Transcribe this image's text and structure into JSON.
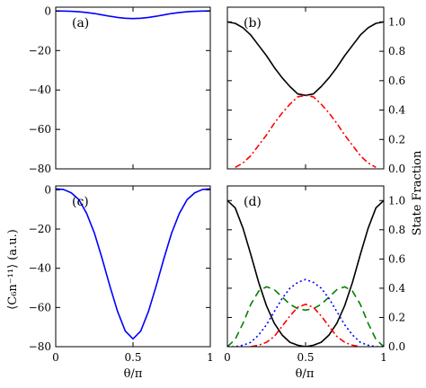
{
  "chart_data": [
    {
      "panel": "(a)",
      "type": "line",
      "xlim": [
        0,
        1
      ],
      "ylim": [
        -80,
        2
      ],
      "xticks": [],
      "yticks": [
        0,
        -20,
        -40,
        -60,
        -80
      ],
      "yticklabels": [
        "0",
        "−20",
        "−40",
        "−60",
        "−80"
      ],
      "series": [
        {
          "color": "#0000ff",
          "style": "solid",
          "x": [
            0,
            0.05,
            0.1,
            0.15,
            0.2,
            0.25,
            0.3,
            0.35,
            0.4,
            0.45,
            0.5,
            0.55,
            0.6,
            0.65,
            0.7,
            0.75,
            0.8,
            0.85,
            0.9,
            0.95,
            1
          ],
          "y": [
            0.1,
            0.05,
            -0.1,
            -0.3,
            -0.7,
            -1.2,
            -1.9,
            -2.6,
            -3.2,
            -3.6,
            -3.8,
            -3.6,
            -3.2,
            -2.6,
            -1.9,
            -1.2,
            -0.7,
            -0.3,
            -0.1,
            0.05,
            0.1
          ]
        }
      ]
    },
    {
      "panel": "(b)",
      "type": "line",
      "xlim": [
        0,
        1
      ],
      "ylim": [
        0,
        1.1
      ],
      "xticks": [],
      "yticks_right": [
        1.0,
        0.8,
        0.6,
        0.4,
        0.2,
        0.0
      ],
      "yticklabels_right": [
        "1.0",
        "0.8",
        "0.6",
        "0.4",
        "0.2",
        "0.0"
      ],
      "series": [
        {
          "color": "#000000",
          "style": "solid",
          "x": [
            0,
            0.05,
            0.1,
            0.15,
            0.2,
            0.25,
            0.3,
            0.35,
            0.4,
            0.45,
            0.5,
            0.55,
            0.6,
            0.65,
            0.7,
            0.75,
            0.8,
            0.85,
            0.9,
            0.95,
            1
          ],
          "y": [
            1.0,
            0.99,
            0.96,
            0.91,
            0.84,
            0.77,
            0.69,
            0.62,
            0.56,
            0.51,
            0.5,
            0.51,
            0.56,
            0.62,
            0.69,
            0.77,
            0.84,
            0.91,
            0.96,
            0.99,
            1.0
          ]
        },
        {
          "color": "#ff0000",
          "style": "dashdot",
          "x": [
            0.05,
            0.1,
            0.15,
            0.2,
            0.25,
            0.3,
            0.35,
            0.4,
            0.45,
            0.5,
            0.55,
            0.6,
            0.65,
            0.7,
            0.75,
            0.8,
            0.85,
            0.9,
            0.95
          ],
          "y": [
            0.01,
            0.04,
            0.09,
            0.16,
            0.23,
            0.31,
            0.38,
            0.44,
            0.49,
            0.5,
            0.49,
            0.44,
            0.38,
            0.31,
            0.23,
            0.16,
            0.09,
            0.04,
            0.01
          ]
        }
      ]
    },
    {
      "panel": "(c)",
      "type": "line",
      "xlim": [
        0,
        1
      ],
      "ylim": [
        -80,
        2
      ],
      "xticks": [
        0,
        0.5,
        1
      ],
      "xticklabels": [
        "0",
        "0.5",
        "1"
      ],
      "yticks": [
        0,
        -20,
        -40,
        -60,
        -80
      ],
      "yticklabels": [
        "0",
        "−20",
        "−40",
        "−60",
        "−80"
      ],
      "series": [
        {
          "color": "#0000ff",
          "style": "solid",
          "x": [
            0,
            0.05,
            0.1,
            0.15,
            0.2,
            0.25,
            0.3,
            0.35,
            0.4,
            0.45,
            0.5,
            0.55,
            0.6,
            0.65,
            0.7,
            0.75,
            0.8,
            0.85,
            0.9,
            0.95,
            1
          ],
          "y": [
            0.5,
            0.2,
            -1.5,
            -5,
            -12,
            -22,
            -35,
            -49,
            -62,
            -72,
            -76,
            -72,
            -62,
            -49,
            -35,
            -22,
            -12,
            -5,
            -1.5,
            0.2,
            0.5
          ]
        }
      ]
    },
    {
      "panel": "(d)",
      "type": "line",
      "xlim": [
        0,
        1
      ],
      "ylim": [
        0,
        1.1
      ],
      "xticks": [
        0,
        0.5,
        1
      ],
      "xticklabels": [
        "0",
        "0.5",
        "1"
      ],
      "yticks_right": [
        1.0,
        0.8,
        0.6,
        0.4,
        0.2,
        0.0
      ],
      "yticklabels_right": [
        "1.0",
        "0.8",
        "0.6",
        "0.4",
        "0.2",
        "0.0"
      ],
      "series": [
        {
          "color": "#000000",
          "style": "solid",
          "x": [
            0,
            0.05,
            0.1,
            0.15,
            0.2,
            0.25,
            0.3,
            0.35,
            0.4,
            0.45,
            0.5,
            0.55,
            0.6,
            0.65,
            0.7,
            0.75,
            0.8,
            0.85,
            0.9,
            0.95,
            1
          ],
          "y": [
            1.0,
            0.95,
            0.81,
            0.63,
            0.44,
            0.28,
            0.16,
            0.08,
            0.03,
            0.01,
            0.0,
            0.01,
            0.03,
            0.08,
            0.16,
            0.28,
            0.44,
            0.63,
            0.81,
            0.95,
            1.0
          ]
        },
        {
          "color": "#008000",
          "style": "dashed",
          "x": [
            0,
            0.05,
            0.1,
            0.15,
            0.2,
            0.25,
            0.3,
            0.35,
            0.4,
            0.45,
            0.5,
            0.55,
            0.6,
            0.65,
            0.7,
            0.75,
            0.8,
            0.85,
            0.9,
            0.95,
            1
          ],
          "y": [
            0.0,
            0.05,
            0.16,
            0.29,
            0.38,
            0.41,
            0.39,
            0.34,
            0.29,
            0.26,
            0.25,
            0.26,
            0.29,
            0.34,
            0.39,
            0.41,
            0.38,
            0.29,
            0.16,
            0.05,
            0.0
          ]
        },
        {
          "color": "#0000ff",
          "style": "dotted",
          "x": [
            0,
            0.05,
            0.1,
            0.15,
            0.2,
            0.25,
            0.3,
            0.35,
            0.4,
            0.45,
            0.5,
            0.55,
            0.6,
            0.65,
            0.7,
            0.75,
            0.8,
            0.85,
            0.9,
            0.95,
            1
          ],
          "y": [
            0.0,
            0.0,
            0.01,
            0.03,
            0.08,
            0.15,
            0.24,
            0.33,
            0.4,
            0.44,
            0.46,
            0.44,
            0.4,
            0.33,
            0.24,
            0.15,
            0.08,
            0.03,
            0.01,
            0.0,
            0.0
          ]
        },
        {
          "color": "#ff0000",
          "style": "dashdot",
          "x": [
            0.15,
            0.2,
            0.25,
            0.3,
            0.35,
            0.4,
            0.45,
            0.5,
            0.55,
            0.6,
            0.65,
            0.7,
            0.75,
            0.8,
            0.85
          ],
          "y": [
            0.0,
            0.01,
            0.03,
            0.07,
            0.14,
            0.21,
            0.27,
            0.29,
            0.27,
            0.21,
            0.14,
            0.07,
            0.03,
            0.01,
            0.0
          ]
        }
      ]
    }
  ],
  "labels": {
    "ylabel_left": "⟨C₆n⁻¹¹⟩  (a.u.)",
    "ylabel_right": "State Fraction",
    "xlabel": "θ/π"
  }
}
